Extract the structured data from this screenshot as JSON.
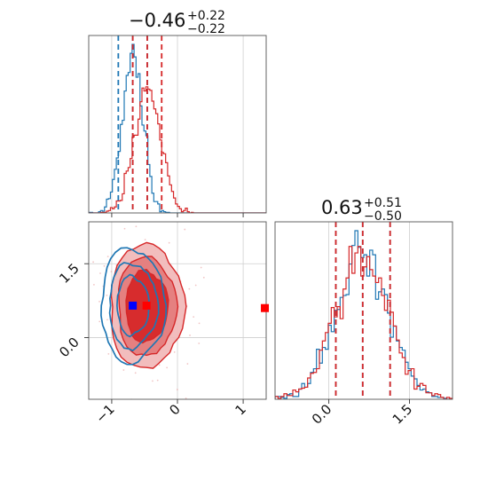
{
  "colors": {
    "red": "#d62728",
    "blue": "#1f77b4",
    "red_fill_light": "#f1b9b9",
    "red_fill_mid": "#e47c7c",
    "red_fill_dark": "#d62728",
    "marker_blue": "#0000ff",
    "marker_red": "#ff0000"
  },
  "chart_data": [
    {
      "type": "histogram",
      "panel": "top-left",
      "title": {
        "value": "−0.46",
        "sup": "+0.22",
        "sub": "−0.22"
      },
      "xlim": [
        -1.35,
        1.35
      ],
      "grid": true,
      "quantiles": {
        "blue": [
          -0.9,
          -0.68,
          -0.46
        ],
        "red": [
          -0.68,
          -0.46,
          -0.24
        ]
      },
      "series": [
        {
          "color": "blue",
          "center": -0.68,
          "sigma": 0.16
        },
        {
          "color": "red",
          "center": -0.46,
          "sigma": 0.2
        }
      ]
    },
    {
      "type": "histogram",
      "panel": "bottom-right",
      "title": {
        "value": "0.63",
        "sup": "+0.51",
        "sub": "−0.50"
      },
      "xlim": [
        -1.0,
        2.3
      ],
      "xticks": [
        "0.0",
        "1.5"
      ],
      "xtick_values": [
        0.0,
        1.5
      ],
      "grid": true,
      "quantiles": {
        "blue": [
          0.13,
          0.63,
          1.14
        ],
        "red": [
          0.13,
          0.63,
          1.14
        ]
      },
      "series": [
        {
          "color": "blue",
          "center": 0.63,
          "sigma": 0.5
        },
        {
          "color": "red",
          "center": 0.63,
          "sigma": 0.5
        }
      ]
    },
    {
      "type": "contour",
      "panel": "bottom-left",
      "xlim": [
        -1.35,
        1.35
      ],
      "ylim": [
        -1.25,
        2.35
      ],
      "xticks": [
        "−1",
        "0",
        "1"
      ],
      "xtick_values": [
        -1,
        0,
        1
      ],
      "yticks": [
        "0.0",
        "1.5"
      ],
      "ytick_values": [
        0.0,
        1.5
      ],
      "grid": true,
      "red_center": [
        -0.47,
        0.63
      ],
      "blue_center": [
        -0.68,
        0.65
      ],
      "markers": [
        {
          "color": "marker_blue",
          "x": -0.68,
          "y": 0.65
        },
        {
          "color": "marker_red",
          "x": -0.47,
          "y": 0.65
        },
        {
          "color": "marker_red",
          "x": 1.33,
          "y": 0.6
        }
      ]
    }
  ]
}
